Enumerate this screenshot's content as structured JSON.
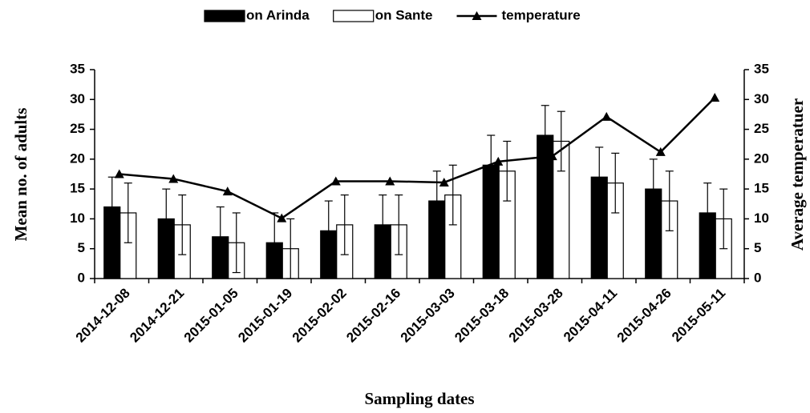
{
  "chart_data": {
    "type": "bar",
    "categories": [
      "2014-12-08",
      "2014-12-21",
      "2015-01-05",
      "2015-01-19",
      "2015-02-02",
      "2015-02-16",
      "2015-03-03",
      "2015-03-18",
      "2015-03-28",
      "2015-04-11",
      "2015-04-26",
      "2015-05-11"
    ],
    "series": [
      {
        "name": "on Arinda",
        "color": "#000000",
        "values": [
          12,
          10,
          7,
          6,
          8,
          9,
          13,
          19,
          24,
          17,
          15,
          11
        ],
        "errors": [
          5,
          5,
          5,
          5,
          5,
          5,
          5,
          5,
          5,
          5,
          5,
          5
        ]
      },
      {
        "name": "on Sante",
        "color": "#ffffff",
        "values": [
          11,
          9,
          6,
          5,
          9,
          9,
          14,
          18,
          23,
          16,
          13,
          10
        ],
        "errors": [
          5,
          5,
          5,
          5,
          5,
          5,
          5,
          5,
          5,
          5,
          5,
          5
        ]
      },
      {
        "name": "temperature",
        "color": "#000000",
        "axis": "y2",
        "values": [
          17.5,
          16.7,
          14.6,
          10.1,
          16.3,
          16.3,
          16.1,
          19.6,
          20.5,
          27.1,
          21.2,
          30.3
        ]
      }
    ],
    "ylabel": "Mean no. of adults",
    "y2label": "Average temperatuer",
    "xlabel": "Sampling dates",
    "ylim": [
      0,
      35
    ],
    "yticks": [
      0,
      5,
      10,
      15,
      20,
      25,
      30,
      35
    ],
    "y2lim": [
      0,
      35
    ],
    "y2ticks": [
      0,
      5,
      10,
      15,
      20,
      25,
      30,
      35
    ],
    "legend": "top"
  }
}
